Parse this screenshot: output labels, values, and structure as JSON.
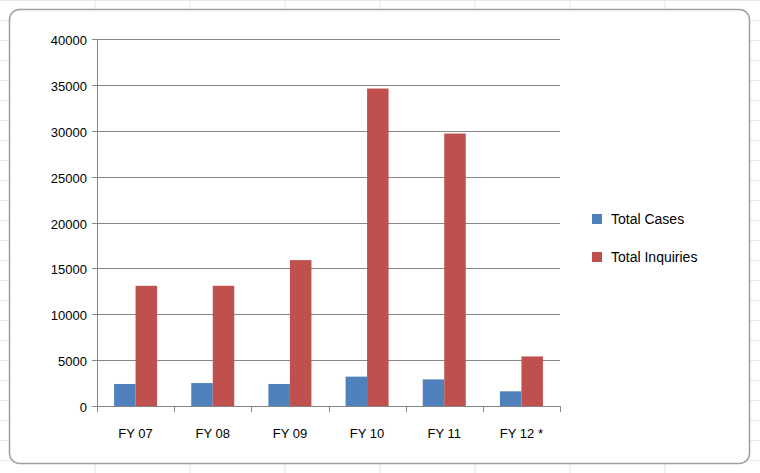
{
  "chart_data": {
    "type": "bar",
    "categories": [
      "FY 07",
      "FY 08",
      "FY 09",
      "FY 10",
      "FY 11",
      "FY 12 *"
    ],
    "series": [
      {
        "name": "Total Cases",
        "color": "#4f81bd",
        "values": [
          2400,
          2500,
          2400,
          3200,
          2900,
          1600
        ]
      },
      {
        "name": "Total Inquiries",
        "color": "#c0504d",
        "values": [
          13100,
          13100,
          15900,
          34600,
          29700,
          5400
        ]
      }
    ],
    "ylim": [
      0,
      40000
    ],
    "yticks": [
      0,
      5000,
      10000,
      15000,
      20000,
      25000,
      30000,
      35000,
      40000
    ],
    "grid": true,
    "legend": "right"
  }
}
